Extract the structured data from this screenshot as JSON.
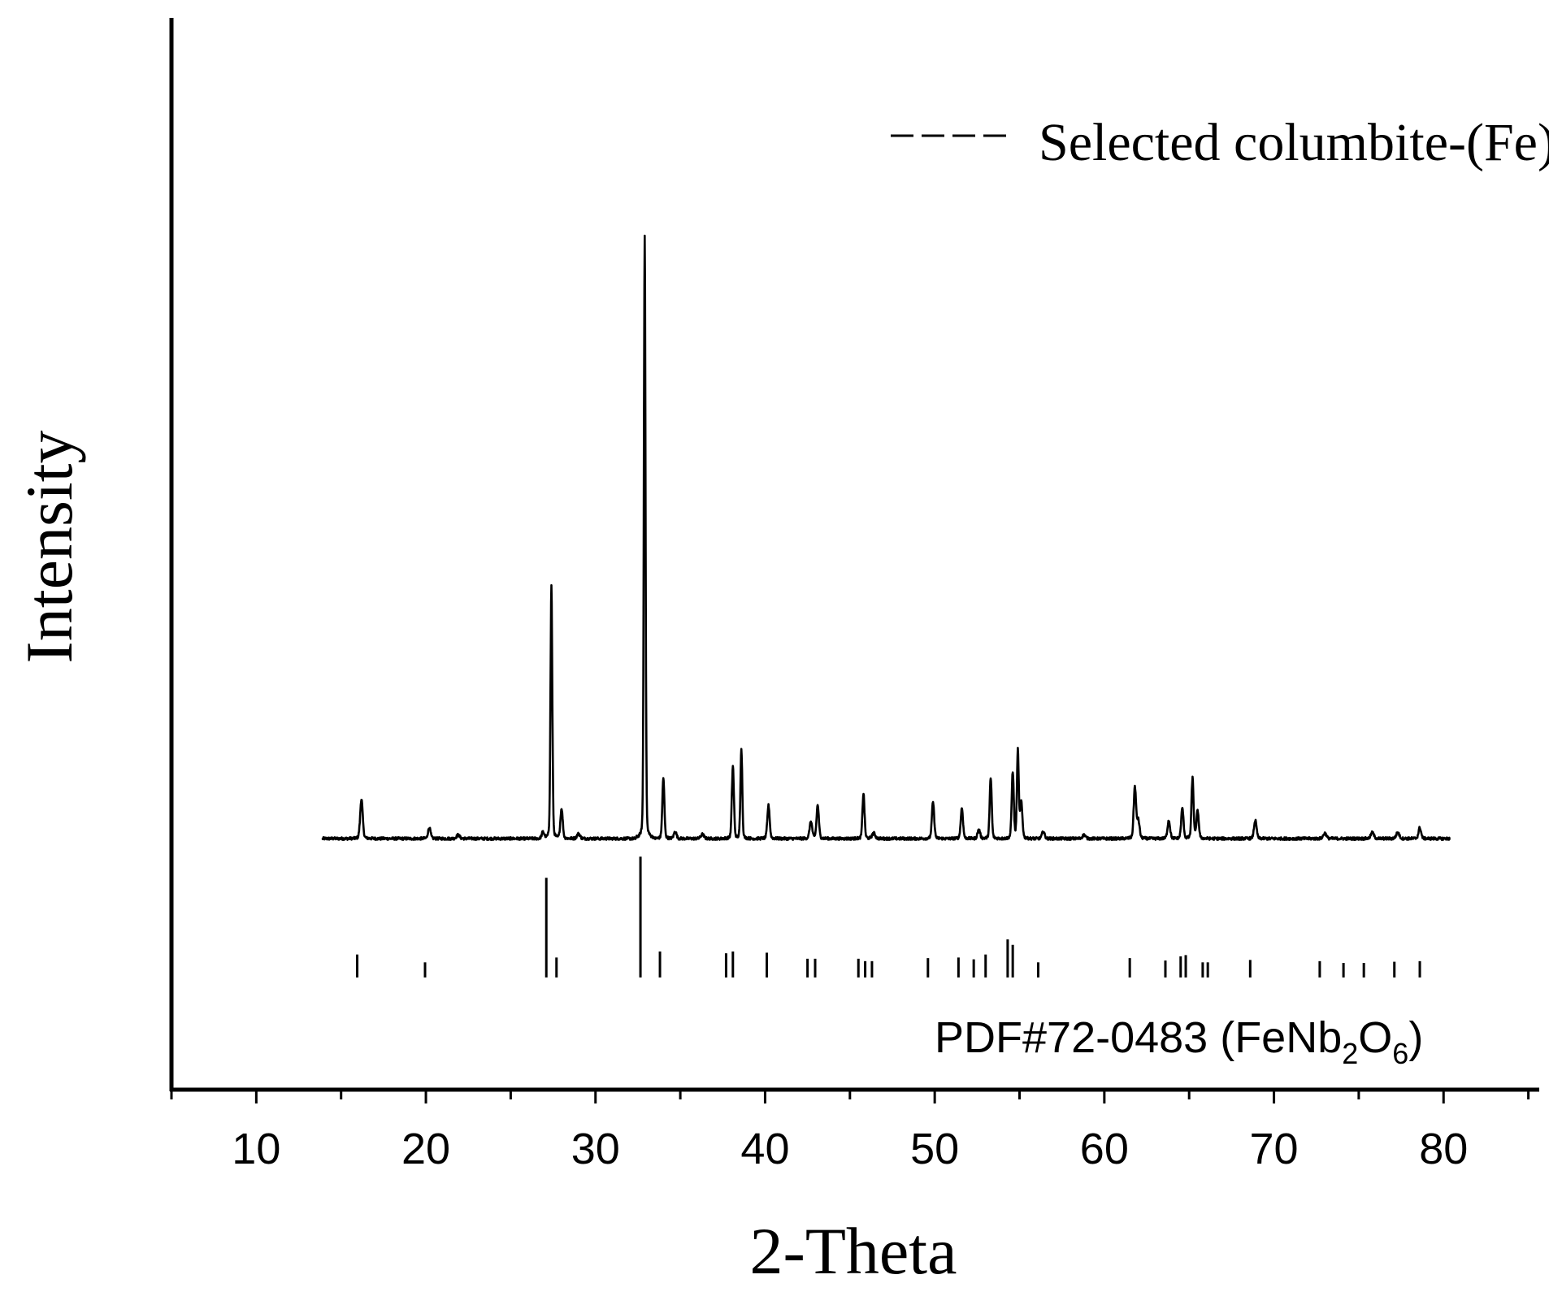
{
  "chart_data": {
    "type": "line",
    "xlabel": "2-Theta",
    "ylabel": "Intensity",
    "xlim": [
      5,
      85
    ],
    "ylim": [
      -36,
      100
    ],
    "x_ticks": [
      10,
      20,
      30,
      40,
      50,
      60,
      70,
      80
    ],
    "grid": false,
    "legend": {
      "placement": "top-right",
      "entries": [
        "Selected columbite-(Fe)"
      ]
    },
    "reference_label": {
      "prefix": "PDF#72-0483 (FeNb",
      "sub1": "2",
      "mid": "O",
      "sub2": "6",
      "suffix": ")"
    },
    "baseline": 0,
    "x_range": [
      13.9,
      80.4
    ],
    "peaks": [
      {
        "x": 16.2,
        "y": 6.5,
        "w": 0.1
      },
      {
        "x": 20.2,
        "y": 1.8,
        "w": 0.1
      },
      {
        "x": 21.9,
        "y": 0.6,
        "w": 0.12
      },
      {
        "x": 26.9,
        "y": 1.0,
        "w": 0.1
      },
      {
        "x": 27.4,
        "y": 42.0,
        "w": 0.07
      },
      {
        "x": 28.0,
        "y": 5.0,
        "w": 0.09
      },
      {
        "x": 29.0,
        "y": 0.8,
        "w": 0.12
      },
      {
        "x": 32.9,
        "y": 100.0,
        "w": 0.065
      },
      {
        "x": 34.0,
        "y": 10.0,
        "w": 0.08
      },
      {
        "x": 34.7,
        "y": 1.2,
        "w": 0.1
      },
      {
        "x": 36.3,
        "y": 0.7,
        "w": 0.12
      },
      {
        "x": 38.1,
        "y": 12.0,
        "w": 0.08
      },
      {
        "x": 38.6,
        "y": 15.0,
        "w": 0.07
      },
      {
        "x": 40.2,
        "y": 5.5,
        "w": 0.09
      },
      {
        "x": 42.7,
        "y": 2.8,
        "w": 0.1
      },
      {
        "x": 43.1,
        "y": 5.5,
        "w": 0.09
      },
      {
        "x": 45.8,
        "y": 7.5,
        "w": 0.08
      },
      {
        "x": 46.4,
        "y": 0.9,
        "w": 0.12
      },
      {
        "x": 49.9,
        "y": 6.0,
        "w": 0.09
      },
      {
        "x": 51.6,
        "y": 5.0,
        "w": 0.09
      },
      {
        "x": 52.6,
        "y": 1.5,
        "w": 0.1
      },
      {
        "x": 53.3,
        "y": 10.0,
        "w": 0.08
      },
      {
        "x": 54.6,
        "y": 11.0,
        "w": 0.08
      },
      {
        "x": 54.9,
        "y": 14.5,
        "w": 0.07
      },
      {
        "x": 55.1,
        "y": 6.0,
        "w": 0.09
      },
      {
        "x": 56.4,
        "y": 1.2,
        "w": 0.1
      },
      {
        "x": 58.8,
        "y": 0.6,
        "w": 0.12
      },
      {
        "x": 61.8,
        "y": 8.5,
        "w": 0.09
      },
      {
        "x": 62.0,
        "y": 3.0,
        "w": 0.1
      },
      {
        "x": 63.8,
        "y": 3.0,
        "w": 0.1
      },
      {
        "x": 64.6,
        "y": 5.0,
        "w": 0.09
      },
      {
        "x": 65.2,
        "y": 10.0,
        "w": 0.08
      },
      {
        "x": 65.5,
        "y": 4.5,
        "w": 0.09
      },
      {
        "x": 68.9,
        "y": 3.0,
        "w": 0.1
      },
      {
        "x": 73.0,
        "y": 0.9,
        "w": 0.12
      },
      {
        "x": 75.8,
        "y": 1.0,
        "w": 0.12
      },
      {
        "x": 77.3,
        "y": 1.0,
        "w": 0.12
      },
      {
        "x": 78.6,
        "y": 1.8,
        "w": 0.1
      }
    ],
    "reference_lines": [
      {
        "x": 15.95,
        "h": 3.8
      },
      {
        "x": 19.95,
        "h": 2.5
      },
      {
        "x": 27.1,
        "h": 16.5
      },
      {
        "x": 27.7,
        "h": 3.3
      },
      {
        "x": 32.65,
        "h": 20.0
      },
      {
        "x": 33.8,
        "h": 4.3
      },
      {
        "x": 37.7,
        "h": 4.0
      },
      {
        "x": 38.1,
        "h": 4.3
      },
      {
        "x": 40.1,
        "h": 4.1
      },
      {
        "x": 42.5,
        "h": 3.1
      },
      {
        "x": 42.95,
        "h": 3.1
      },
      {
        "x": 45.5,
        "h": 3.1
      },
      {
        "x": 45.9,
        "h": 2.7
      },
      {
        "x": 46.3,
        "h": 2.7
      },
      {
        "x": 49.6,
        "h": 3.2
      },
      {
        "x": 51.4,
        "h": 3.3
      },
      {
        "x": 52.3,
        "h": 3.0
      },
      {
        "x": 53.0,
        "h": 3.8
      },
      {
        "x": 54.3,
        "h": 6.3
      },
      {
        "x": 54.6,
        "h": 5.4
      },
      {
        "x": 56.1,
        "h": 2.5
      },
      {
        "x": 61.5,
        "h": 3.2
      },
      {
        "x": 63.6,
        "h": 2.8
      },
      {
        "x": 64.5,
        "h": 3.5
      },
      {
        "x": 64.8,
        "h": 3.7
      },
      {
        "x": 65.8,
        "h": 2.5
      },
      {
        "x": 66.1,
        "h": 2.5
      },
      {
        "x": 68.6,
        "h": 2.9
      },
      {
        "x": 72.7,
        "h": 2.7
      },
      {
        "x": 74.1,
        "h": 2.4
      },
      {
        "x": 75.3,
        "h": 2.4
      },
      {
        "x": 77.1,
        "h": 2.6
      },
      {
        "x": 78.6,
        "h": 2.7
      }
    ],
    "reference_baseline": -23
  }
}
